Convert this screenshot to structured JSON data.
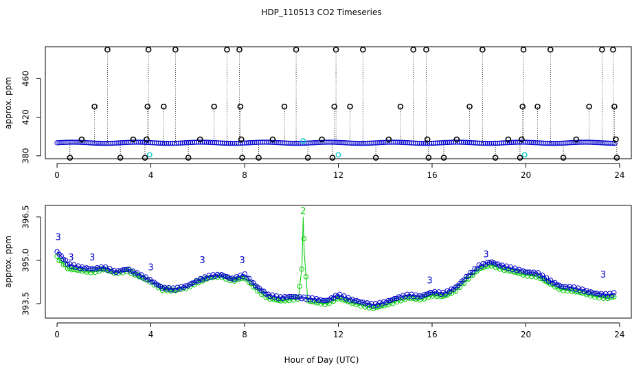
{
  "chart_data": [
    {
      "type": "scatter",
      "title": "HDP_110513  CO2 Timeseries",
      "xlabel": "Hour of Day (UTC)",
      "ylabel": "approx. ppm",
      "xlim": [
        -0.5,
        24.5
      ],
      "ylim": [
        377,
        493
      ],
      "xticks": [
        "0",
        "4",
        "8",
        "12",
        "16",
        "20",
        "24"
      ],
      "xtick_values": [
        0,
        4,
        8,
        12,
        16,
        20,
        24
      ],
      "yticks": [
        "380",
        "420",
        "460"
      ],
      "ytick_values": [
        380,
        420,
        460
      ],
      "baseline": 393.5,
      "outlier_levels": [
        378,
        397,
        431,
        490
      ],
      "outliers": [
        [
          0.55,
          378
        ],
        [
          1.05,
          397
        ],
        [
          1.6,
          431
        ],
        [
          2.15,
          490
        ],
        [
          2.7,
          378
        ],
        [
          3.25,
          397
        ],
        [
          3.75,
          378
        ],
        [
          3.82,
          397
        ],
        [
          3.86,
          431
        ],
        [
          3.9,
          490
        ],
        [
          4.55,
          431
        ],
        [
          5.05,
          490
        ],
        [
          5.6,
          378
        ],
        [
          6.1,
          397
        ],
        [
          6.7,
          431
        ],
        [
          7.25,
          490
        ],
        [
          7.78,
          490
        ],
        [
          7.82,
          431
        ],
        [
          7.86,
          397
        ],
        [
          7.9,
          378
        ],
        [
          8.6,
          378
        ],
        [
          9.2,
          397
        ],
        [
          9.7,
          431
        ],
        [
          10.2,
          490
        ],
        [
          10.7,
          378
        ],
        [
          11.3,
          397
        ],
        [
          11.75,
          378
        ],
        [
          11.83,
          431
        ],
        [
          11.9,
          490
        ],
        [
          12.5,
          431
        ],
        [
          13.05,
          490
        ],
        [
          13.6,
          378
        ],
        [
          14.15,
          397
        ],
        [
          14.65,
          431
        ],
        [
          15.2,
          490
        ],
        [
          15.75,
          490
        ],
        [
          15.8,
          397
        ],
        [
          15.85,
          378
        ],
        [
          16.5,
          378
        ],
        [
          17.05,
          397
        ],
        [
          17.6,
          431
        ],
        [
          18.15,
          490
        ],
        [
          18.7,
          378
        ],
        [
          19.25,
          397
        ],
        [
          19.75,
          378
        ],
        [
          19.82,
          397
        ],
        [
          19.86,
          431
        ],
        [
          19.9,
          490
        ],
        [
          20.5,
          431
        ],
        [
          21.05,
          490
        ],
        [
          21.6,
          378
        ],
        [
          22.15,
          397
        ],
        [
          22.7,
          431
        ],
        [
          23.25,
          490
        ],
        [
          23.72,
          490
        ],
        [
          23.78,
          431
        ],
        [
          23.84,
          397
        ],
        [
          23.88,
          378
        ]
      ],
      "cyan_points": [
        [
          3.95,
          381
        ],
        [
          12.0,
          381
        ],
        [
          19.95,
          381
        ],
        [
          10.5,
          395.5
        ]
      ]
    },
    {
      "type": "line",
      "xlabel": "",
      "ylabel": "approx. ppm",
      "xlim": [
        -0.5,
        24.5
      ],
      "ylim": [
        393.0,
        396.9
      ],
      "xticks": [
        "0",
        "4",
        "8",
        "12",
        "16",
        "20",
        "24"
      ],
      "xtick_values": [
        0,
        4,
        8,
        12,
        16,
        20,
        24
      ],
      "yticks": [
        "393.5",
        "395.0",
        "396.5"
      ],
      "ytick_values": [
        393.5,
        395.0,
        396.5
      ],
      "series": [
        {
          "name": "3",
          "color": "#0000cc",
          "x": [
            0,
            0.5,
            1,
            1.5,
            2,
            2.5,
            3,
            3.5,
            4,
            4.5,
            5,
            5.5,
            6,
            6.5,
            7,
            7.5,
            8,
            8.5,
            9,
            9.5,
            10,
            10.5,
            11,
            11.5,
            12,
            12.5,
            13,
            13.5,
            14,
            14.5,
            15,
            15.5,
            16,
            16.5,
            17,
            17.5,
            18,
            18.5,
            19,
            19.5,
            20,
            20.5,
            21,
            21.5,
            22,
            22.5,
            23,
            23.5,
            23.8
          ],
          "y": [
            395.3,
            394.85,
            394.75,
            394.7,
            394.75,
            394.6,
            394.7,
            394.5,
            394.3,
            394.05,
            394.0,
            394.1,
            394.3,
            394.45,
            394.5,
            394.35,
            394.5,
            394.1,
            393.8,
            393.7,
            393.75,
            393.7,
            393.65,
            393.6,
            393.8,
            393.65,
            393.55,
            393.45,
            393.55,
            393.7,
            393.8,
            393.75,
            393.9,
            393.85,
            394.05,
            394.45,
            394.8,
            394.95,
            394.8,
            394.7,
            394.6,
            394.55,
            394.3,
            394.1,
            394.05,
            393.95,
            393.85,
            393.8,
            393.85
          ]
        },
        {
          "name": "2",
          "color": "#00cc00",
          "x": [
            0,
            0.5,
            1,
            1.5,
            2,
            2.5,
            3,
            3.5,
            4,
            4.5,
            5,
            5.5,
            6,
            6.5,
            7,
            7.5,
            8,
            8.5,
            9,
            9.5,
            10,
            10.3,
            10.45,
            10.5,
            10.55,
            10.7,
            11,
            11.5,
            12,
            12.5,
            13,
            13.5,
            14,
            14.5,
            15,
            15.5,
            16,
            16.5,
            17,
            17.5,
            18,
            18.5,
            19,
            19.5,
            20,
            20.5,
            21,
            21.5,
            22,
            22.5,
            23,
            23.5,
            23.8
          ],
          "y": [
            395.1,
            394.7,
            394.65,
            394.6,
            394.7,
            394.55,
            394.65,
            394.45,
            394.25,
            394.0,
            393.95,
            394.05,
            394.25,
            394.4,
            394.45,
            394.3,
            394.4,
            394.0,
            393.7,
            393.6,
            393.65,
            393.7,
            394.8,
            396.5,
            395.2,
            393.6,
            393.55,
            393.5,
            393.7,
            393.55,
            393.45,
            393.35,
            393.45,
            393.6,
            393.7,
            393.65,
            393.8,
            393.75,
            393.95,
            394.35,
            394.7,
            394.85,
            394.7,
            394.6,
            394.5,
            394.45,
            394.2,
            394.0,
            393.95,
            393.85,
            393.75,
            393.7,
            393.75
          ]
        }
      ],
      "labels": [
        {
          "text": "3",
          "x": 0.05,
          "y": 395.7,
          "color": "#0000cc"
        },
        {
          "text": "3",
          "x": 0.6,
          "y": 395.0,
          "color": "#0000cc"
        },
        {
          "text": "3",
          "x": 1.5,
          "y": 395.0,
          "color": "#0000cc"
        },
        {
          "text": "3",
          "x": 4.0,
          "y": 394.65,
          "color": "#0000cc"
        },
        {
          "text": "3",
          "x": 6.2,
          "y": 394.9,
          "color": "#0000cc"
        },
        {
          "text": "3",
          "x": 7.9,
          "y": 394.9,
          "color": "#0000cc"
        },
        {
          "text": "3",
          "x": 15.9,
          "y": 394.2,
          "color": "#0000cc"
        },
        {
          "text": "3",
          "x": 18.3,
          "y": 395.1,
          "color": "#0000cc"
        },
        {
          "text": "3",
          "x": 23.3,
          "y": 394.4,
          "color": "#0000cc"
        },
        {
          "text": "2",
          "x": 10.5,
          "y": 396.6,
          "color": "#00cc00"
        }
      ]
    }
  ]
}
